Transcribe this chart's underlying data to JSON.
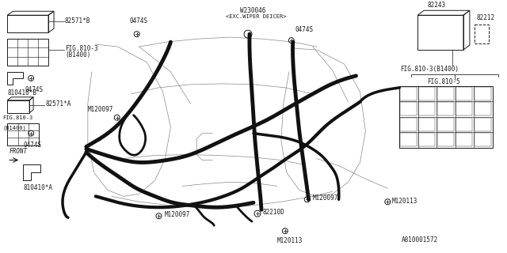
{
  "bg_color": "#ffffff",
  "line_color": "#1a1a1a",
  "thin_line_color": "#888888",
  "labels": {
    "82571B": "82571*B",
    "FIG810_3_top": "FIG.810-3",
    "B1400_top": "(B1400)",
    "810410B": "810410*B",
    "0474S_tl": "0474S",
    "82571A": "82571*A",
    "FIG810_3_bot": "FIG.810-3",
    "B1400_bot": "(B1400)",
    "0474S_bl": "0474S",
    "FRONT": "FRONT",
    "810410A": "810410*A",
    "M120097_lc": "M120097",
    "M120097_bc": "M120097",
    "M120097_rm": "M120097",
    "M120113_bc": "M120113",
    "M120113_rr": "M120113",
    "82210D": "82210D",
    "W230046": "W230046",
    "EXC_WIPER": "<EXC.WIPER DEICER>",
    "0474S_tc": "0474S",
    "0474S_tr": "0474S",
    "82243": "82243",
    "82212": "82212",
    "FIG810_3_right": "FIG.810-3(B1400)",
    "FIG810_5": "FIG.810-5",
    "A810001572": "A810001572"
  }
}
